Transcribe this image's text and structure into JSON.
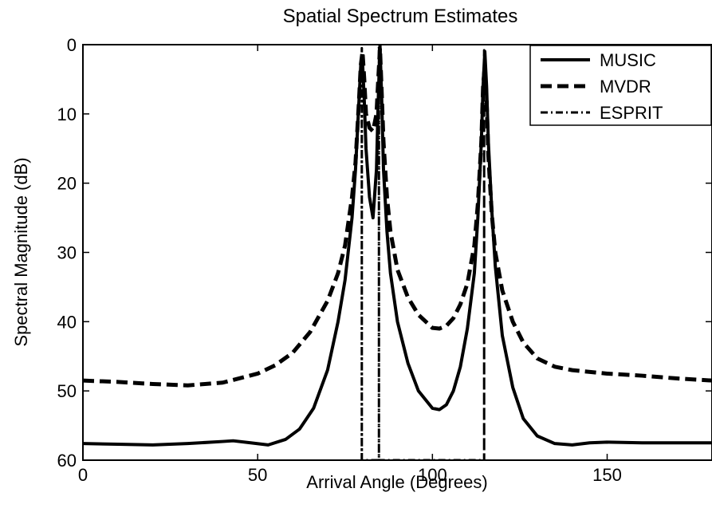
{
  "chart_data": {
    "type": "line",
    "title": "Spatial Spectrum Estimates",
    "xlabel": "Arrival Angle (Degrees)",
    "ylabel": "Spectral Magnitude (dB)",
    "xlim": [
      0,
      180
    ],
    "ylim": [
      0,
      60
    ],
    "y_inverted": true,
    "x_ticks": [
      0,
      50,
      100,
      150
    ],
    "y_ticks": [
      0,
      10,
      20,
      30,
      40,
      50,
      60
    ],
    "grid": false,
    "legend_position": "top-right",
    "series": [
      {
        "name": "MUSIC",
        "style": "solid",
        "color": "#000000",
        "x": [
          0,
          10,
          20,
          30,
          40,
          43,
          48,
          53,
          58,
          62,
          66,
          70,
          73,
          75,
          77,
          78,
          79,
          79.5,
          80,
          80.5,
          81,
          82,
          83,
          84,
          84.5,
          85,
          85.5,
          86,
          87,
          88,
          90,
          93,
          96,
          100,
          102,
          104,
          106,
          108,
          110,
          112,
          113,
          114,
          114.5,
          115,
          115.5,
          116,
          117,
          118,
          120,
          123,
          126,
          130,
          135,
          140,
          145,
          150,
          160,
          170,
          180
        ],
        "y": [
          57.6,
          57.7,
          57.8,
          57.6,
          57.3,
          57.2,
          57.5,
          57.8,
          57.0,
          55.5,
          52.5,
          47.0,
          40.0,
          34.0,
          25.0,
          18.0,
          8.0,
          3.0,
          2.5,
          8.0,
          15.0,
          22.0,
          25.0,
          18.0,
          8.0,
          0.0,
          8.0,
          18.0,
          27.0,
          33.0,
          40.0,
          46.0,
          50.0,
          52.5,
          52.7,
          52.0,
          50.0,
          46.5,
          41.0,
          33.0,
          25.0,
          14.0,
          6.0,
          1.0,
          6.0,
          14.0,
          24.0,
          32.0,
          42.0,
          49.5,
          54.0,
          56.5,
          57.6,
          57.8,
          57.5,
          57.4,
          57.5,
          57.5,
          57.5
        ]
      },
      {
        "name": "MVDR",
        "style": "dashed",
        "color": "#000000",
        "x": [
          0,
          10,
          20,
          30,
          40,
          50,
          55,
          60,
          65,
          70,
          73,
          75,
          77,
          78,
          79,
          79.5,
          80,
          80.5,
          81,
          82,
          83,
          84,
          84.5,
          85,
          85.5,
          86,
          87,
          88,
          90,
          93,
          96,
          100,
          102,
          104,
          106,
          108,
          110,
          112,
          113,
          114,
          114.5,
          115,
          115.5,
          116,
          117,
          118,
          120,
          123,
          126,
          130,
          135,
          140,
          150,
          160,
          170,
          180
        ],
        "y": [
          48.5,
          48.7,
          49.0,
          49.2,
          48.8,
          47.5,
          46.3,
          44.5,
          41.5,
          37.0,
          33.0,
          29.0,
          22.0,
          17.0,
          8.0,
          3.0,
          1.0,
          5.0,
          10.0,
          12.0,
          12.5,
          10.0,
          5.0,
          0.5,
          7.0,
          14.0,
          22.0,
          27.0,
          32.5,
          36.5,
          39.0,
          40.9,
          41.0,
          40.6,
          39.5,
          37.5,
          34.5,
          29.0,
          23.0,
          14.0,
          6.0,
          3.0,
          8.0,
          16.0,
          24.5,
          30.0,
          35.5,
          40.0,
          43.0,
          45.3,
          46.5,
          47.0,
          47.5,
          47.8,
          48.2,
          48.5
        ]
      },
      {
        "name": "ESPRIT",
        "style": "dashdot",
        "color": "#000000",
        "x": [
          79.8,
          79.8,
          79.8,
          84.7,
          84.7,
          84.7,
          114.8,
          114.8,
          114.8
        ],
        "y": [
          60,
          0.5,
          60,
          60,
          0.3,
          60,
          60,
          0.8,
          60
        ]
      }
    ]
  }
}
